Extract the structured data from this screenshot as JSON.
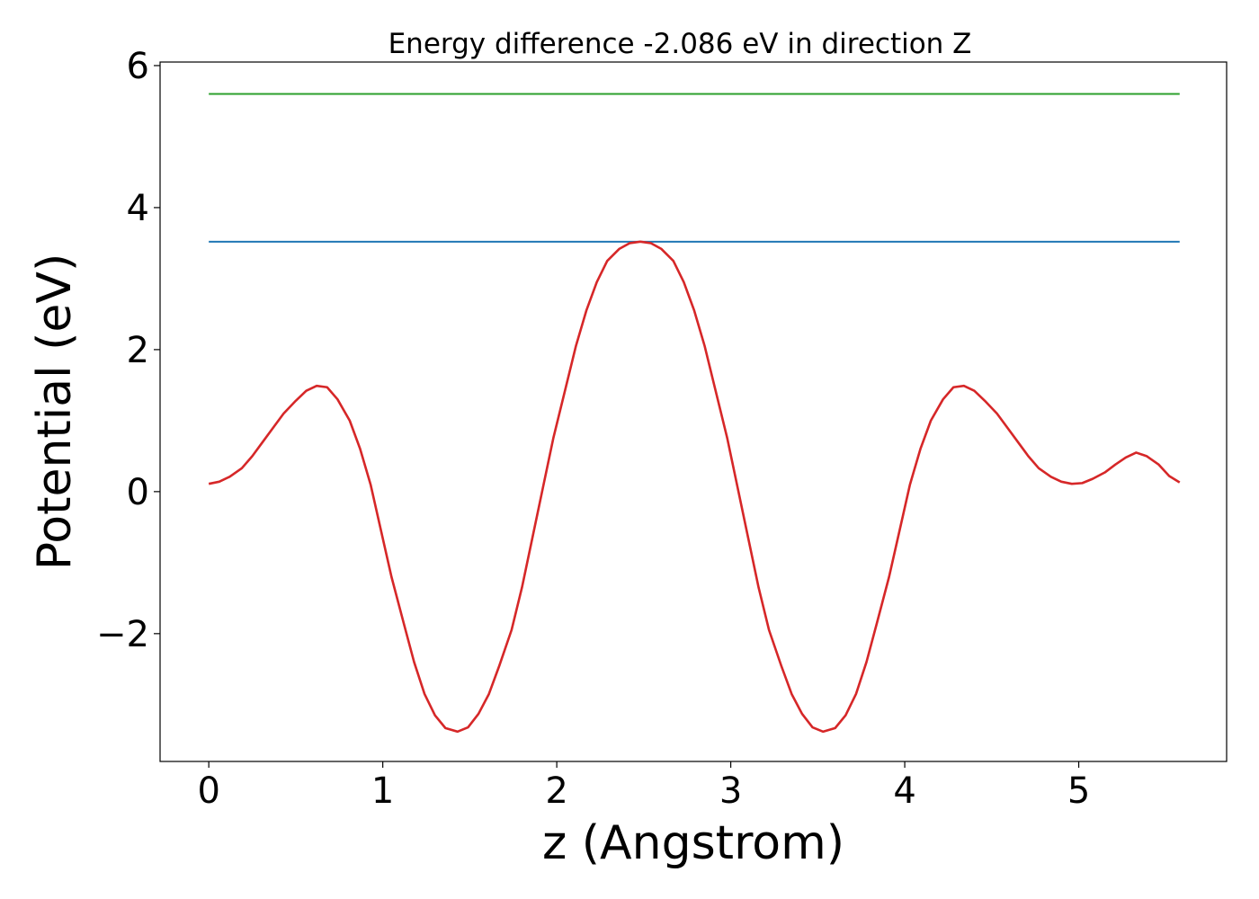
{
  "chart_data": {
    "type": "line",
    "title": "Energy difference -2.086 eV in direction Z",
    "xlabel": "z (Angstrom)",
    "ylabel": "Potential (eV)",
    "xlim": [
      -0.28,
      5.85
    ],
    "ylim": [
      -3.8,
      6.05
    ],
    "xticks": [
      0,
      1,
      2,
      3,
      4,
      5
    ],
    "yticks": [
      -2,
      0,
      2,
      4,
      6
    ],
    "ytick_labels": [
      "−2",
      "0",
      "2",
      "4",
      "6"
    ],
    "grid": false,
    "series": [
      {
        "color": "#2ca02c",
        "x": [
          0.0,
          5.58
        ],
        "y": [
          5.6,
          5.6
        ]
      },
      {
        "color": "#1f77b4",
        "x": [
          0.0,
          5.58
        ],
        "y": [
          3.52,
          3.52
        ]
      },
      {
        "color": "#d62728",
        "x": [
          0.0,
          0.06,
          0.12,
          0.19,
          0.25,
          0.31,
          0.37,
          0.43,
          0.5,
          0.56,
          0.62,
          0.68,
          0.74,
          0.81,
          0.87,
          0.93,
          0.99,
          1.05,
          1.12,
          1.18,
          1.24,
          1.3,
          1.36,
          1.43,
          1.49,
          1.55,
          1.61,
          1.67,
          1.74,
          1.8,
          1.86,
          1.92,
          1.98,
          2.05,
          2.11,
          2.17,
          2.23,
          2.29,
          2.36,
          2.42,
          2.48,
          2.54,
          2.6,
          2.67,
          2.73,
          2.79,
          2.85,
          2.91,
          2.98,
          3.04,
          3.1,
          3.16,
          3.22,
          3.29,
          3.35,
          3.41,
          3.47,
          3.53,
          3.6,
          3.66,
          3.72,
          3.78,
          3.84,
          3.91,
          3.97,
          4.03,
          4.09,
          4.15,
          4.22,
          4.28,
          4.34,
          4.4,
          4.46,
          4.53,
          4.59,
          4.65,
          4.71,
          4.77,
          4.84,
          4.9,
          4.96,
          5.02,
          5.08,
          5.15,
          5.21,
          5.27,
          5.33,
          5.39,
          5.46,
          5.52,
          5.58
        ],
        "y": [
          0.11,
          0.14,
          0.21,
          0.33,
          0.5,
          0.7,
          0.9,
          1.1,
          1.28,
          1.42,
          1.49,
          1.47,
          1.3,
          1.0,
          0.6,
          0.1,
          -0.55,
          -1.2,
          -1.85,
          -2.4,
          -2.85,
          -3.15,
          -3.33,
          -3.38,
          -3.32,
          -3.13,
          -2.85,
          -2.45,
          -1.95,
          -1.35,
          -0.65,
          0.05,
          0.75,
          1.45,
          2.05,
          2.55,
          2.95,
          3.25,
          3.42,
          3.5,
          3.52,
          3.5,
          3.42,
          3.25,
          2.95,
          2.55,
          2.05,
          1.45,
          0.75,
          0.05,
          -0.65,
          -1.35,
          -1.95,
          -2.45,
          -2.85,
          -3.13,
          -3.32,
          -3.38,
          -3.33,
          -3.15,
          -2.85,
          -2.4,
          -1.85,
          -1.2,
          -0.55,
          0.1,
          0.6,
          1.0,
          1.3,
          1.47,
          1.49,
          1.42,
          1.28,
          1.1,
          0.9,
          0.7,
          0.5,
          0.33,
          0.21,
          0.14,
          0.11,
          0.12,
          0.18,
          0.27,
          0.38,
          0.48,
          0.55,
          0.5,
          0.38,
          0.22,
          0.13
        ]
      }
    ]
  }
}
